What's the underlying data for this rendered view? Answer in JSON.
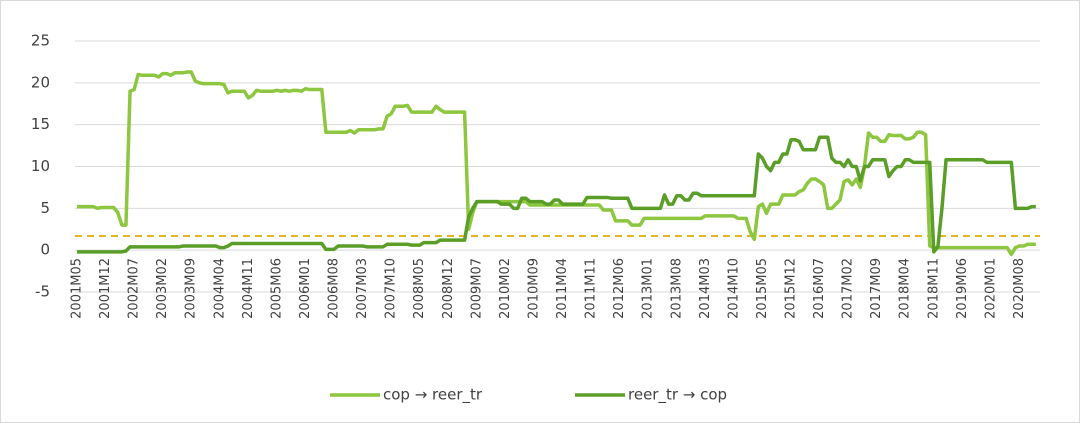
{
  "chart_data": {
    "type": "line",
    "categories": [
      "2001M05",
      null,
      null,
      null,
      null,
      null,
      null,
      "2001M12",
      null,
      null,
      null,
      null,
      null,
      null,
      "2002M07",
      null,
      null,
      null,
      null,
      null,
      null,
      "2003M02",
      null,
      null,
      null,
      null,
      null,
      null,
      "2003M09",
      null,
      null,
      null,
      null,
      null,
      null,
      "2004M04",
      null,
      null,
      null,
      null,
      null,
      null,
      "2004M11",
      null,
      null,
      null,
      null,
      null,
      null,
      "2005M06",
      null,
      null,
      null,
      null,
      null,
      null,
      "2006M01",
      null,
      null,
      null,
      null,
      null,
      null,
      "2006M08",
      null,
      null,
      null,
      null,
      null,
      null,
      "2007M03",
      null,
      null,
      null,
      null,
      null,
      null,
      "2007M10",
      null,
      null,
      null,
      null,
      null,
      null,
      "2008M05",
      null,
      null,
      null,
      null,
      null,
      null,
      "2008M12",
      null,
      null,
      null,
      null,
      null,
      null,
      "2009M07",
      null,
      null,
      null,
      null,
      null,
      null,
      "2010M02",
      null,
      null,
      null,
      null,
      null,
      null,
      "2010M09",
      null,
      null,
      null,
      null,
      null,
      null,
      "2011M04",
      null,
      null,
      null,
      null,
      null,
      null,
      "2011M11",
      null,
      null,
      null,
      null,
      null,
      null,
      "2012M06",
      null,
      null,
      null,
      null,
      null,
      null,
      "2013M01",
      null,
      null,
      null,
      null,
      null,
      null,
      "2013M08",
      null,
      null,
      null,
      null,
      null,
      null,
      "2014M03",
      null,
      null,
      null,
      null,
      null,
      null,
      "2014M10",
      null,
      null,
      null,
      null,
      null,
      null,
      "2015M05",
      null,
      null,
      null,
      null,
      null,
      null,
      "2015M12",
      null,
      null,
      null,
      null,
      null,
      null,
      "2016M07",
      null,
      null,
      null,
      null,
      null,
      null,
      "2017M02",
      null,
      null,
      null,
      null,
      null,
      null,
      "2017M09",
      null,
      null,
      null,
      null,
      null,
      null,
      "2018M04",
      null,
      null,
      null,
      null,
      null,
      null,
      "2018M11",
      null,
      null,
      null,
      null,
      null,
      null,
      "2019M06",
      null,
      null,
      null,
      null,
      null,
      null,
      "2020M01",
      null,
      null,
      null,
      null,
      null,
      null,
      "2020M08",
      null,
      null,
      null,
      null
    ],
    "series": [
      {
        "name": "cop → reer_tr",
        "color": "#8dc63f",
        "values": [
          5.2,
          5.2,
          5.2,
          5.2,
          5.2,
          5.0,
          5.1,
          5.1,
          5.1,
          5.1,
          4.5,
          3.0,
          3.0,
          19.0,
          19.2,
          21.0,
          20.9,
          20.9,
          20.9,
          20.9,
          20.7,
          21.1,
          21.1,
          20.9,
          21.2,
          21.2,
          21.2,
          21.3,
          21.3,
          20.2,
          20.0,
          19.9,
          19.9,
          19.9,
          19.9,
          19.9,
          19.8,
          18.8,
          19.0,
          19.0,
          19.0,
          19.0,
          18.2,
          18.5,
          19.1,
          19.0,
          19.0,
          19.0,
          19.0,
          19.1,
          19.0,
          19.1,
          19.0,
          19.1,
          19.1,
          19.0,
          19.3,
          19.2,
          19.2,
          19.2,
          19.2,
          14.1,
          14.1,
          14.1,
          14.1,
          14.1,
          14.1,
          14.3,
          14.0,
          14.4,
          14.4,
          14.4,
          14.4,
          14.4,
          14.5,
          14.5,
          16.0,
          16.3,
          17.2,
          17.2,
          17.2,
          17.3,
          16.5,
          16.5,
          16.5,
          16.5,
          16.5,
          16.5,
          17.2,
          16.8,
          16.5,
          16.5,
          16.5,
          16.5,
          16.5,
          16.5,
          2.5,
          4.5,
          5.8,
          5.8,
          5.8,
          5.8,
          5.8,
          5.8,
          5.8,
          5.8,
          5.8,
          5.8,
          5.8,
          5.8,
          5.8,
          5.4,
          5.4,
          5.4,
          5.4,
          5.4,
          5.4,
          5.4,
          5.4,
          5.4,
          5.4,
          5.4,
          5.4,
          5.4,
          5.4,
          5.4,
          5.4,
          5.4,
          5.4,
          4.8,
          4.8,
          4.8,
          3.5,
          3.5,
          3.5,
          3.5,
          3.0,
          3.0,
          3.0,
          3.8,
          3.8,
          3.8,
          3.8,
          3.8,
          3.8,
          3.8,
          3.8,
          3.8,
          3.8,
          3.8,
          3.8,
          3.8,
          3.8,
          3.8,
          4.1,
          4.1,
          4.1,
          4.1,
          4.1,
          4.1,
          4.1,
          4.1,
          3.8,
          3.8,
          3.8,
          2.2,
          1.3,
          5.2,
          5.5,
          4.4,
          5.5,
          5.5,
          5.5,
          6.6,
          6.6,
          6.6,
          6.6,
          7.0,
          7.2,
          8.0,
          8.5,
          8.5,
          8.2,
          7.8,
          5.0,
          5.0,
          5.5,
          6.0,
          8.2,
          8.4,
          7.8,
          8.5,
          7.5,
          10.0,
          14.0,
          13.5,
          13.5,
          13.0,
          13.0,
          13.8,
          13.7,
          13.7,
          13.7,
          13.3,
          13.3,
          13.5,
          14.1,
          14.1,
          13.8,
          0.5,
          0.3,
          0.3,
          0.3,
          0.3,
          0.3,
          0.3,
          0.3,
          0.3,
          0.3,
          0.3,
          0.3,
          0.3,
          0.3,
          0.3,
          0.3,
          0.3,
          0.3,
          0.3,
          0.3,
          -0.5,
          0.3,
          0.5,
          0.5,
          0.7,
          0.7,
          0.7
        ]
      },
      {
        "name": "reer_tr → cop",
        "color": "#5a9e28",
        "values": [
          -0.2,
          -0.2,
          -0.2,
          -0.2,
          -0.2,
          -0.2,
          -0.2,
          -0.2,
          -0.2,
          -0.2,
          -0.2,
          -0.2,
          -0.1,
          0.4,
          0.4,
          0.4,
          0.4,
          0.4,
          0.4,
          0.4,
          0.4,
          0.4,
          0.4,
          0.4,
          0.4,
          0.4,
          0.5,
          0.5,
          0.5,
          0.5,
          0.5,
          0.5,
          0.5,
          0.5,
          0.5,
          0.3,
          0.3,
          0.5,
          0.8,
          0.8,
          0.8,
          0.8,
          0.8,
          0.8,
          0.8,
          0.8,
          0.8,
          0.8,
          0.8,
          0.8,
          0.8,
          0.8,
          0.8,
          0.8,
          0.8,
          0.8,
          0.8,
          0.8,
          0.8,
          0.8,
          0.8,
          0.1,
          0.1,
          0.1,
          0.5,
          0.5,
          0.5,
          0.5,
          0.5,
          0.5,
          0.5,
          0.4,
          0.4,
          0.4,
          0.4,
          0.4,
          0.7,
          0.7,
          0.7,
          0.7,
          0.7,
          0.7,
          0.6,
          0.6,
          0.6,
          0.9,
          0.9,
          0.9,
          0.9,
          1.2,
          1.2,
          1.2,
          1.2,
          1.2,
          1.2,
          1.2,
          4.0,
          5.0,
          5.8,
          5.8,
          5.8,
          5.8,
          5.8,
          5.8,
          5.5,
          5.5,
          5.5,
          5.0,
          5.0,
          6.2,
          6.2,
          5.8,
          5.8,
          5.8,
          5.8,
          5.5,
          5.5,
          6.0,
          6.0,
          5.5,
          5.5,
          5.5,
          5.5,
          5.5,
          5.5,
          6.3,
          6.3,
          6.3,
          6.3,
          6.3,
          6.3,
          6.2,
          6.2,
          6.2,
          6.2,
          6.2,
          5.0,
          5.0,
          5.0,
          5.0,
          5.0,
          5.0,
          5.0,
          5.0,
          6.6,
          5.5,
          5.5,
          6.5,
          6.5,
          6.0,
          6.0,
          6.8,
          6.8,
          6.5,
          6.5,
          6.5,
          6.5,
          6.5,
          6.5,
          6.5,
          6.5,
          6.5,
          6.5,
          6.5,
          6.5,
          6.5,
          6.5,
          11.5,
          11.0,
          10.0,
          9.5,
          10.5,
          10.5,
          11.5,
          11.5,
          13.2,
          13.2,
          13.0,
          12.0,
          12.0,
          12.0,
          12.0,
          13.5,
          13.5,
          13.5,
          11.0,
          10.5,
          10.5,
          10.0,
          10.8,
          10.0,
          10.0,
          8.3,
          10.0,
          10.0,
          10.8,
          10.8,
          10.8,
          10.8,
          8.8,
          9.5,
          10.0,
          10.0,
          10.8,
          10.8,
          10.5,
          10.5,
          10.5,
          10.5,
          10.5,
          -0.2,
          0.4,
          5.0,
          10.8,
          10.8,
          10.8,
          10.8,
          10.8,
          10.8,
          10.8,
          10.8,
          10.8,
          10.8,
          10.5,
          10.5,
          10.5,
          10.5,
          10.5,
          10.5,
          10.5,
          5.0,
          5.0,
          5.0,
          5.0,
          5.2,
          5.2
        ]
      }
    ],
    "reference_line": {
      "value": 1.7,
      "color": "#e6b422",
      "dashed": true
    },
    "ylim": [
      -5,
      25
    ],
    "yticks": [
      -5,
      0,
      5,
      10,
      15,
      20,
      25
    ],
    "grid": true,
    "legend": "bottom"
  }
}
